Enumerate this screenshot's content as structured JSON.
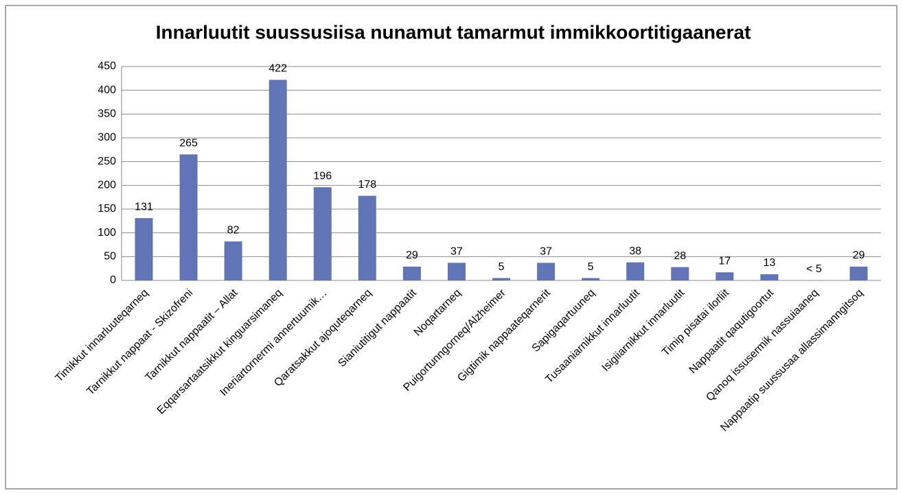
{
  "chart_data": {
    "type": "bar",
    "title": "Innarluutit suussusiisa nunamut tamarmut immikkoortitigaanerat",
    "categories": [
      "Timikkut innarluuteqarneq",
      "Tarnikkut nappaat - Skizofreni",
      "Tarnikkut nappaatit – Allat",
      "Eqqarsartaatsikkut kinguarsimaneq",
      "Ineriartornermi annertuumik…",
      "Qaratsakkut ajoquteqarneq",
      "Sianiutitigut nappaatit",
      "Noqartarneq",
      "Puigortunngorneq/Alzheimer",
      "Gigtimik nappaateqarnerit",
      "Sapigaqartuuneq",
      "Tusaaniarnikkut innarluutit",
      "Isigiiarnikkut innarluutit",
      "Timip pisatai ilorliit",
      "Nappaatit qaqutigoortut",
      "Qanoq issusermik nassuiaaneq",
      "Nappaatip suussusaa allassimanngitsoq"
    ],
    "values": [
      131,
      265,
      82,
      422,
      196,
      178,
      29,
      37,
      5,
      37,
      5,
      38,
      28,
      17,
      13,
      null,
      29
    ],
    "value_labels": [
      "131",
      "265",
      "82",
      "422",
      "196",
      "178",
      "29",
      "37",
      "5",
      "37",
      "5",
      "38",
      "28",
      "17",
      "13",
      "< 5",
      "29"
    ],
    "color": "#6074b6",
    "ylim": [
      0,
      450
    ],
    "yticks": [
      0,
      50,
      100,
      150,
      200,
      250,
      300,
      350,
      400,
      450
    ],
    "grid": true
  }
}
